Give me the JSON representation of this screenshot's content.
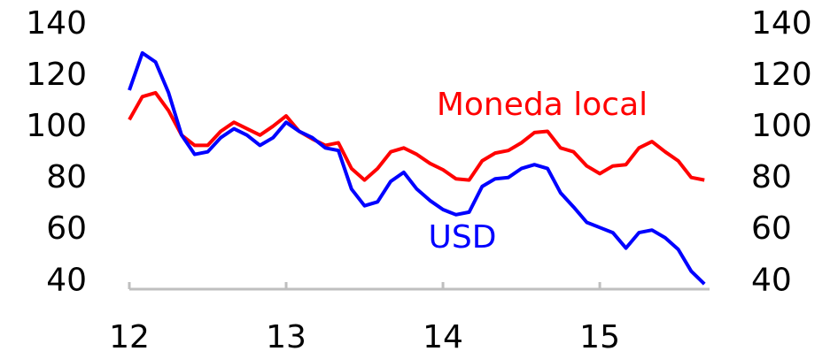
{
  "chart_data": {
    "type": "line",
    "x": [
      12,
      12.083,
      12.167,
      12.25,
      12.333,
      12.417,
      12.5,
      12.583,
      12.667,
      12.75,
      12.833,
      12.917,
      13,
      13.083,
      13.167,
      13.25,
      13.333,
      13.417,
      13.5,
      13.583,
      13.667,
      13.75,
      13.833,
      13.917,
      14,
      14.083,
      14.167,
      14.25,
      14.333,
      14.417,
      14.5,
      14.583,
      14.667,
      14.75,
      14.833,
      14.917,
      15,
      15.083,
      15.167,
      15.25,
      15.333,
      15.417,
      15.5,
      15.583,
      15.667
    ],
    "series": [
      {
        "name": "Moneda local",
        "color": "#ff0000",
        "values": [
          103,
          112,
          113.5,
          106.5,
          97,
          93,
          93,
          98.5,
          102,
          99.5,
          97,
          100.5,
          104.5,
          98.5,
          95.5,
          93,
          94,
          84,
          79.5,
          84,
          90.5,
          92,
          89.5,
          86,
          83.5,
          80,
          79.5,
          87,
          90,
          91,
          94,
          98,
          98.5,
          92,
          90.5,
          85,
          82,
          85,
          85.5,
          92,
          94.5,
          90.5,
          87,
          80.5,
          79.5
        ]
      },
      {
        "name": "USD",
        "color": "#0000ff",
        "values": [
          114.5,
          129,
          125.5,
          113.5,
          97,
          89.5,
          90.5,
          96,
          99.5,
          97,
          93,
          96,
          102,
          98.5,
          96,
          92,
          91,
          76,
          69.5,
          71,
          79,
          82.5,
          76,
          71.5,
          68,
          66,
          67,
          77,
          80,
          80.5,
          84,
          85.5,
          84,
          74.5,
          69,
          63,
          61,
          59,
          53,
          59,
          60,
          57,
          52.5,
          44,
          39
        ]
      }
    ],
    "xlim": [
      12,
      15.7
    ],
    "xticks": [
      12,
      13,
      14,
      15
    ],
    "ylim": [
      37,
      140
    ],
    "yticks": [
      40,
      60,
      80,
      100,
      120,
      140
    ]
  }
}
